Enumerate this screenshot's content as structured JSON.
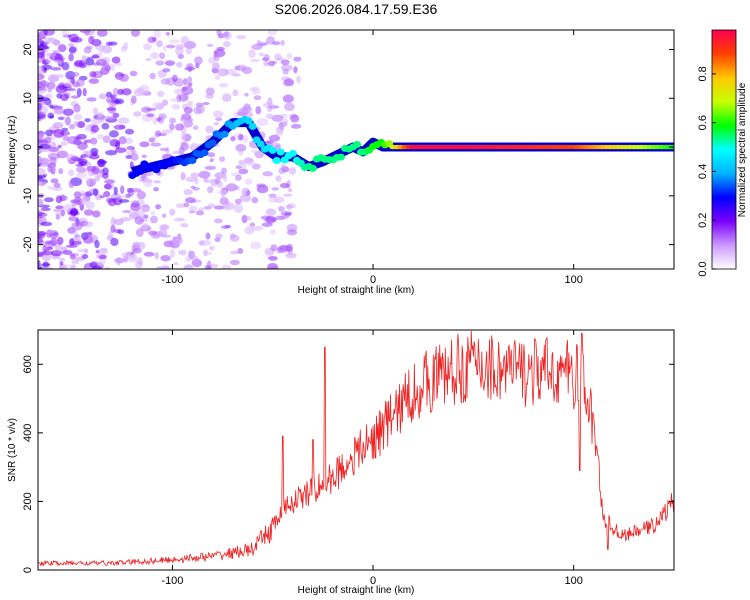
{
  "figure": {
    "title": "S206.2026.084.17.59.E36"
  },
  "chart_data": [
    {
      "type": "heatmap",
      "xlabel": "Height of straight line (km)",
      "ylabel": "Frequency (Hz)",
      "xlim": [
        -167,
        150
      ],
      "ylim": [
        -25,
        24
      ],
      "x_ticks": [
        -100,
        0,
        100
      ],
      "x_tick_labels": [
        "-100",
        "0",
        "100"
      ],
      "y_ticks": [
        -20,
        -10,
        0,
        10,
        20
      ],
      "y_tick_labels": [
        "-20",
        "-10",
        "0",
        "10",
        "20"
      ],
      "grid": false,
      "colorbar": {
        "label": "Normalized spectral amplitude",
        "range": [
          0,
          0.98
        ],
        "ticks": [
          0,
          0.2,
          0.4,
          0.6,
          0.8
        ],
        "tick_labels": [
          "0.0",
          "0.2",
          "0.4",
          "0.6",
          "0.8"
        ],
        "colormap": [
          "#ffffff",
          "#cc99ff",
          "#7a00ff",
          "#0000ff",
          "#00b4ff",
          "#00ffff",
          "#00ff00",
          "#c8ff00",
          "#ffc800",
          "#ff4000",
          "#ff0050"
        ]
      },
      "ridge": {
        "x": [
          -120,
          -110,
          -100,
          -90,
          -80,
          -70,
          -62,
          -55,
          -48,
          -40,
          -32,
          -25,
          -20,
          -15,
          -10,
          -5,
          0,
          5,
          20,
          50,
          100,
          150
        ],
        "frequency": [
          -5,
          -4,
          -3,
          -2,
          1,
          5,
          5,
          0,
          -2,
          -2,
          -4,
          -3,
          -2,
          -1,
          0,
          -1,
          1,
          0,
          0,
          0,
          0,
          0
        ],
        "amplitude": [
          0.3,
          0.3,
          0.3,
          0.35,
          0.35,
          0.4,
          0.45,
          0.45,
          0.5,
          0.5,
          0.55,
          0.55,
          0.55,
          0.55,
          0.55,
          0.55,
          0.6,
          0.6,
          0.98,
          0.98,
          0.9,
          0.6
        ]
      }
    },
    {
      "type": "line",
      "xlabel": "Height of straight line (km)",
      "ylabel": "SNR (10 * v/v)",
      "xlim": [
        -167,
        150
      ],
      "ylim": [
        0,
        700
      ],
      "x_ticks": [
        -100,
        0,
        100
      ],
      "x_tick_labels": [
        "-100",
        "0",
        "100"
      ],
      "y_ticks": [
        0,
        200,
        400,
        600
      ],
      "y_tick_labels": [
        "0",
        "200",
        "400",
        "600"
      ],
      "grid": false,
      "series": [
        {
          "color": "#ee2222",
          "envelope_x": [
            -167,
            -130,
            -100,
            -80,
            -60,
            -52,
            -45,
            -40,
            -30,
            -20,
            -10,
            0,
            10,
            20,
            30,
            40,
            50,
            60,
            70,
            80,
            90,
            100,
            105,
            110,
            115,
            120,
            125,
            130,
            140,
            150
          ],
          "envelope_y": [
            20,
            20,
            30,
            40,
            60,
            110,
            170,
            200,
            230,
            270,
            330,
            380,
            450,
            520,
            560,
            580,
            600,
            590,
            580,
            575,
            580,
            570,
            540,
            420,
            150,
            120,
            100,
            110,
            130,
            200
          ],
          "spikes": [
            {
              "x": -24,
              "y": 650
            },
            {
              "x": 104,
              "y": 690
            },
            {
              "x": 103,
              "y": 290
            },
            {
              "x": -30,
              "y": 380
            },
            {
              "x": -45,
              "y": 390
            },
            {
              "x": 117,
              "y": 60
            }
          ]
        }
      ]
    }
  ]
}
